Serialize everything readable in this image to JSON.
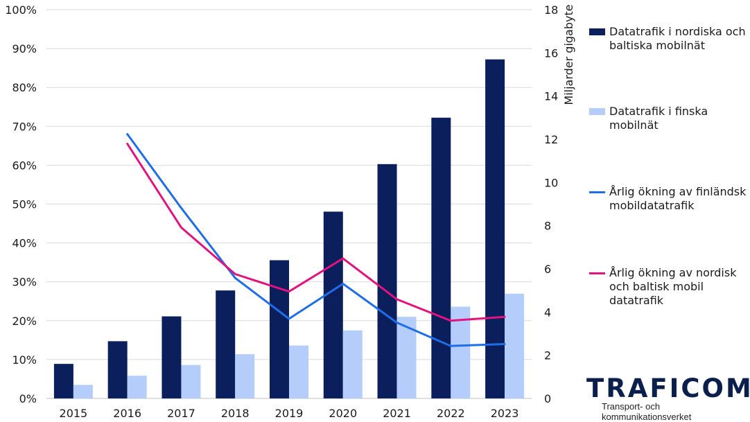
{
  "chart_data": {
    "type": "bar+line",
    "categories": [
      "2015",
      "2016",
      "2017",
      "2018",
      "2019",
      "2020",
      "2021",
      "2022",
      "2023"
    ],
    "bar_axis": {
      "label": "Miljarder gigabyte",
      "range": [
        0,
        18
      ],
      "ticks": [
        "0",
        "2",
        "4",
        "6",
        "8",
        "10",
        "12",
        "14",
        "16",
        "18"
      ]
    },
    "line_axis": {
      "range": [
        0,
        100
      ],
      "ticks": [
        "0%",
        "10%",
        "20%",
        "30%",
        "40%",
        "50%",
        "60%",
        "70%",
        "80%",
        "90%",
        "100%"
      ]
    },
    "bar_series": [
      {
        "name": "Datatrafik i nordiska och baltiska mobilnät",
        "color": "#0b1f5c",
        "values": [
          1.6,
          2.65,
          3.8,
          5.0,
          6.4,
          8.65,
          10.85,
          13.0,
          15.7
        ]
      },
      {
        "name": "Datatrafik i finska mobilnät",
        "color": "#b4cdfa",
        "values": [
          0.63,
          1.05,
          1.55,
          2.05,
          2.45,
          3.15,
          3.78,
          4.25,
          4.85
        ]
      }
    ],
    "line_series": [
      {
        "name": "Årlig ökning av finländsk mobildatatrafik",
        "color": "#1f6de8",
        "values": [
          null,
          68,
          49,
          31,
          20.5,
          29.5,
          19.5,
          13.5,
          14
        ]
      },
      {
        "name": "Årlig ökning av nordisk och baltisk mobil datatrafik",
        "color": "#e2137e",
        "values": [
          null,
          65.5,
          44,
          32,
          27.5,
          36,
          25.5,
          20,
          21
        ]
      }
    ],
    "grid": true,
    "legend_position": "right"
  },
  "legend": [
    {
      "key": "bar1",
      "lines": [
        "Datatrafik i nordiska och",
        "baltiska mobilnät"
      ]
    },
    {
      "key": "bar2",
      "lines": [
        "Datatrafik i finska",
        "mobilnät"
      ]
    },
    {
      "key": "line1",
      "lines": [
        "Årlig ökning av finländsk",
        "mobildatatrafik"
      ]
    },
    {
      "key": "line2",
      "lines": [
        "Årlig ökning av nordisk",
        "och baltisk mobil",
        "datatrafik"
      ]
    }
  ],
  "logo": {
    "name": "TRAFICOM",
    "subtitle": "Transport- och kommunikationsverket"
  }
}
